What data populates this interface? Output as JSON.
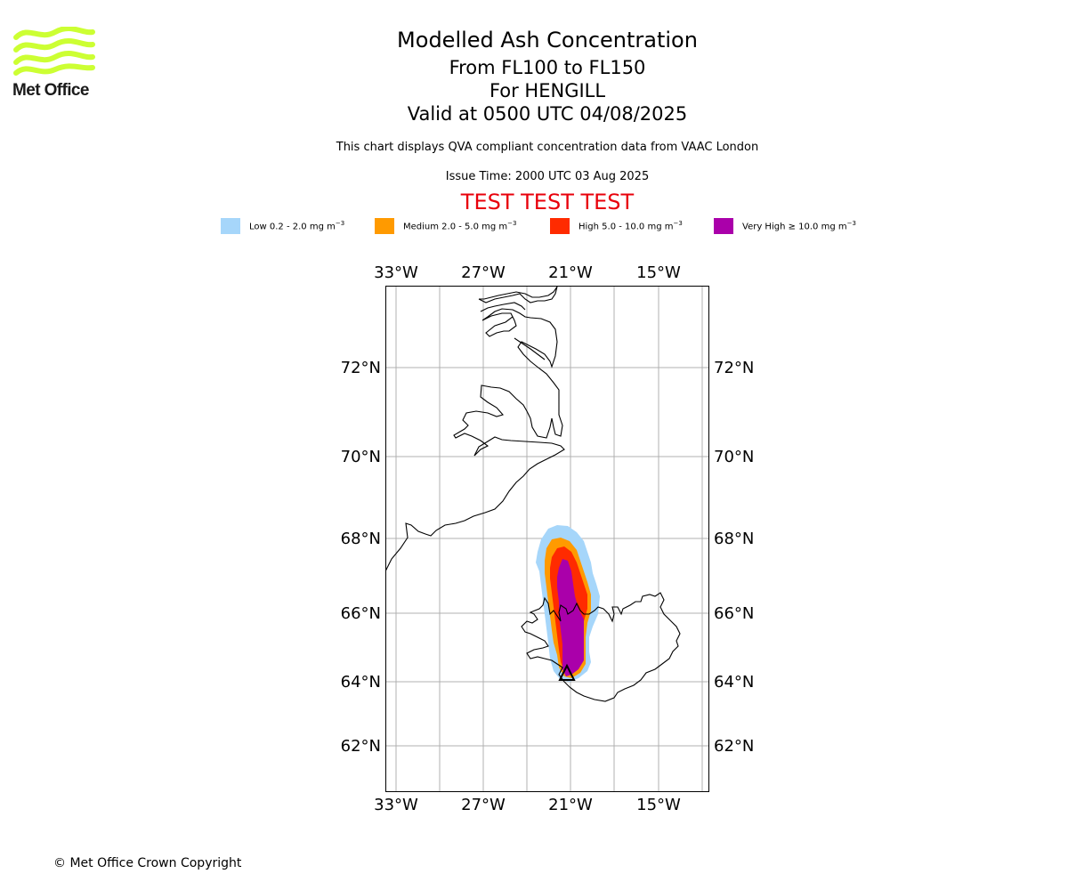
{
  "logo": {
    "text": "Met Office",
    "color": "#ccff33"
  },
  "header": {
    "title": "Modelled Ash Concentration",
    "subtitle_levels": "From FL100 to FL150",
    "subtitle_location": "For HENGILL",
    "subtitle_valid": "Valid at 0500 UTC 04/08/2025",
    "description": "This chart displays QVA compliant concentration data from VAAC London",
    "issue_time": "Issue Time: 2000 UTC 03 Aug 2025",
    "test_banner": "TEST TEST TEST"
  },
  "legend": [
    {
      "label": "Low 0.2 - 2.0 mg m",
      "unit_exp": "−3",
      "color": "#a6d6fa"
    },
    {
      "label": "Medium 2.0 - 5.0 mg m",
      "unit_exp": "−3",
      "color": "#ff9a00"
    },
    {
      "label": "High 5.0 - 10.0 mg m",
      "unit_exp": "−3",
      "color": "#ff2b00"
    },
    {
      "label": "Very High  ≥  10.0 mg m",
      "unit_exp": "−3",
      "color": "#aa00aa"
    }
  ],
  "map": {
    "longitude_labels": [
      "33°W",
      "27°W",
      "21°W",
      "15°W"
    ],
    "latitude_labels": [
      "72°N",
      "70°N",
      "68°N",
      "66°N",
      "64°N",
      "62°N"
    ],
    "volcano": "HENGILL",
    "volcano_marker": "triangle"
  },
  "footer": {
    "copyright": "© Met Office Crown Copyright"
  }
}
